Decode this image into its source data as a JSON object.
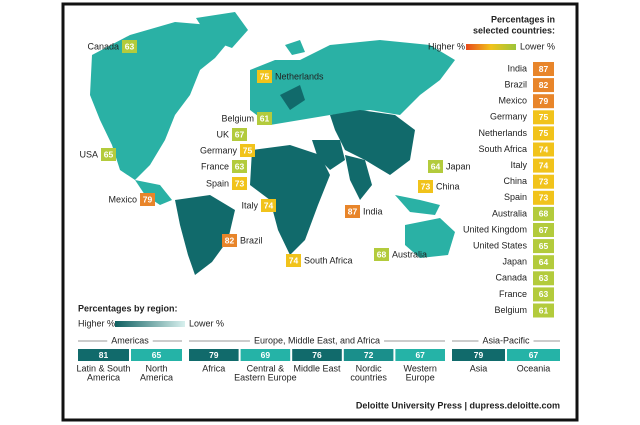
{
  "legend": {
    "title": [
      "Percentages in",
      "selected countries:"
    ],
    "higher": "Higher %",
    "lower": "Lower %"
  },
  "countries": [
    {
      "name": "India",
      "value": 87,
      "color": "#e8852a"
    },
    {
      "name": "Brazil",
      "value": 82,
      "color": "#e8852a"
    },
    {
      "name": "Mexico",
      "value": 79,
      "color": "#e8852a"
    },
    {
      "name": "Germany",
      "value": 75,
      "color": "#f1c31b"
    },
    {
      "name": "Netherlands",
      "value": 75,
      "color": "#f1c31b"
    },
    {
      "name": "South Africa",
      "value": 74,
      "color": "#f1c31b"
    },
    {
      "name": "Italy",
      "value": 74,
      "color": "#f1c31b"
    },
    {
      "name": "China",
      "value": 73,
      "color": "#f1c31b"
    },
    {
      "name": "Spain",
      "value": 73,
      "color": "#f1c31b"
    },
    {
      "name": "Australia",
      "value": 68,
      "color": "#b3cb3c"
    },
    {
      "name": "United Kingdom",
      "value": 67,
      "color": "#b3cb3c"
    },
    {
      "name": "United States",
      "value": 65,
      "color": "#b3cb3c"
    },
    {
      "name": "Japan",
      "value": 64,
      "color": "#b3cb3c"
    },
    {
      "name": "Canada",
      "value": 63,
      "color": "#b3cb3c"
    },
    {
      "name": "France",
      "value": 63,
      "color": "#b3cb3c"
    },
    {
      "name": "Belgium",
      "value": 61,
      "color": "#b3cb3c"
    }
  ],
  "map_labels": [
    {
      "name": "Canada",
      "value": 63,
      "color": "#b3cb3c"
    },
    {
      "name": "Netherlands",
      "value": 75,
      "color": "#f1c31b"
    },
    {
      "name": "Belgium",
      "value": 61,
      "color": "#b3cb3c"
    },
    {
      "name": "UK",
      "value": 67,
      "color": "#b3cb3c"
    },
    {
      "name": "Germany",
      "value": 75,
      "color": "#f1c31b"
    },
    {
      "name": "France",
      "value": 63,
      "color": "#b3cb3c"
    },
    {
      "name": "Spain",
      "value": 73,
      "color": "#f1c31b"
    },
    {
      "name": "USA",
      "value": 65,
      "color": "#b3cb3c"
    },
    {
      "name": "Mexico",
      "value": 79,
      "color": "#e8852a"
    },
    {
      "name": "Italy",
      "value": 74,
      "color": "#f1c31b"
    },
    {
      "name": "Brazil",
      "value": 82,
      "color": "#e8852a"
    },
    {
      "name": "India",
      "value": 87,
      "color": "#e8852a"
    },
    {
      "name": "South Africa",
      "value": 74,
      "color": "#f1c31b"
    },
    {
      "name": "Japan",
      "value": 64,
      "color": "#b3cb3c"
    },
    {
      "name": "China",
      "value": 73,
      "color": "#f1c31b"
    },
    {
      "name": "Australia",
      "value": 68,
      "color": "#b3cb3c"
    }
  ],
  "regions": {
    "title": "Percentages by region:",
    "higher": "Higher %",
    "lower": "Lower %",
    "groups": [
      {
        "name": "Americas",
        "items": [
          {
            "value": 81,
            "label": [
              "Latin & South",
              "America"
            ],
            "color": "#116a6b"
          },
          {
            "value": 65,
            "label": [
              "North",
              "America"
            ],
            "color": "#25b3a7"
          }
        ]
      },
      {
        "name": "Europe, Middle East, and Africa",
        "items": [
          {
            "value": 79,
            "label": [
              "Africa"
            ],
            "color": "#116a6b"
          },
          {
            "value": 69,
            "label": [
              "Central &",
              "Eastern Europe"
            ],
            "color": "#25b3a7"
          },
          {
            "value": 76,
            "label": [
              "Middle East"
            ],
            "color": "#116a6b"
          },
          {
            "value": 72,
            "label": [
              "Nordic",
              "countries"
            ],
            "color": "#1a8f8b"
          },
          {
            "value": 67,
            "label": [
              "Western",
              "Europe"
            ],
            "color": "#25b3a7"
          }
        ]
      },
      {
        "name": "Asia-Pacific",
        "items": [
          {
            "value": 79,
            "label": [
              "Asia"
            ],
            "color": "#116a6b"
          },
          {
            "value": 67,
            "label": [
              "Oceania"
            ],
            "color": "#25b3a7"
          }
        ]
      }
    ]
  },
  "footer": "Deloitte University Press  |  dupress.deloitte.com"
}
